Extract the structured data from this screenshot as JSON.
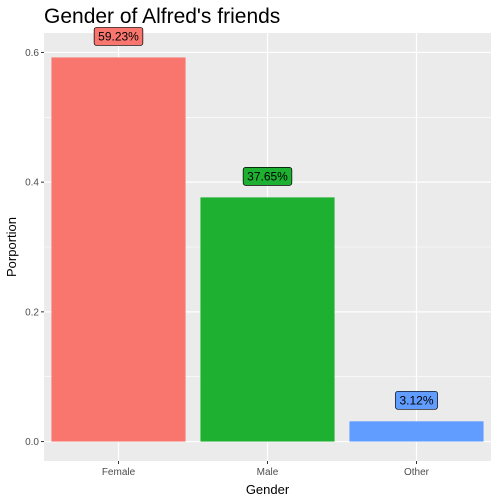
{
  "chart_data": {
    "type": "bar",
    "title": "Gender of Alfred's friends",
    "xlabel": "Gender",
    "ylabel": "Porportion",
    "categories": [
      "Female",
      "Male",
      "Other"
    ],
    "values": [
      0.5923,
      0.3765,
      0.0312
    ],
    "data_labels": [
      "59.23%",
      "37.65%",
      "3.12%"
    ],
    "colors": [
      "#F8766D",
      "#1DB031",
      "#619CFF"
    ],
    "yticks": [
      0.0,
      0.2,
      0.4,
      0.6
    ],
    "ytick_labels": [
      "0.0",
      "0.2",
      "0.4",
      "0.6"
    ],
    "ylim": [
      -0.03,
      0.63
    ],
    "grid": true,
    "panel_background": "#EBEBEB",
    "legend": "none"
  }
}
